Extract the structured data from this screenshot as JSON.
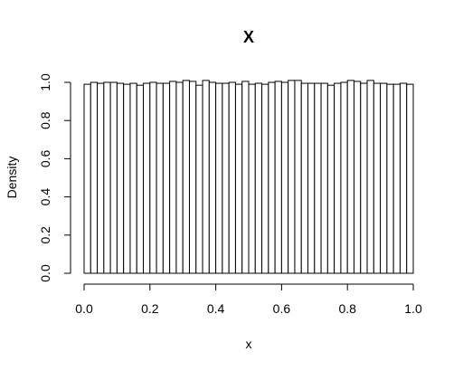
{
  "chart_data": {
    "type": "bar",
    "title": "X",
    "xlabel": "x",
    "ylabel": "Density",
    "xlim": [
      0,
      1
    ],
    "ylim": [
      0,
      1
    ],
    "x_ticks": [
      "0.0",
      "0.2",
      "0.4",
      "0.6",
      "0.8",
      "1.0"
    ],
    "y_ticks": [
      "0.0",
      "0.2",
      "0.4",
      "0.6",
      "0.8",
      "1.0"
    ],
    "bin_width": 0.02,
    "values": [
      0.99,
      1.0,
      0.995,
      1.0,
      1.0,
      0.995,
      0.99,
      0.995,
      0.985,
      0.995,
      1.0,
      0.995,
      0.995,
      1.005,
      1.0,
      1.01,
      1.005,
      0.985,
      1.01,
      1.0,
      0.995,
      0.995,
      1.0,
      0.99,
      1.005,
      0.99,
      0.995,
      0.99,
      1.0,
      1.005,
      1.0,
      1.01,
      1.01,
      0.995,
      0.995,
      0.995,
      0.995,
      0.985,
      0.995,
      1.0,
      1.01,
      1.005,
      0.995,
      1.01,
      0.995,
      0.995,
      0.99,
      0.99,
      0.995,
      0.99
    ],
    "grid": false,
    "legend": "none"
  }
}
